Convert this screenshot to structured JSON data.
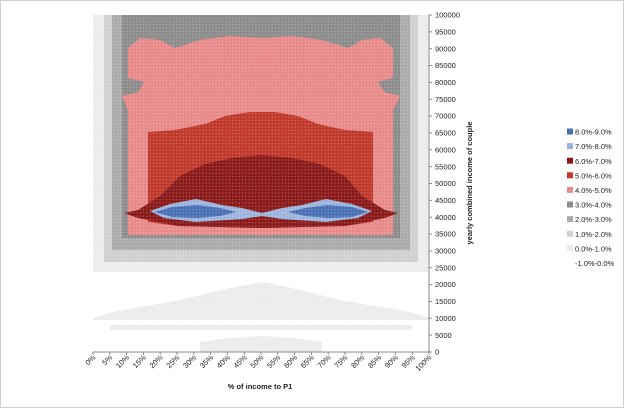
{
  "chart_data": {
    "type": "contour",
    "xlabel": "% of income to P1",
    "ylabel": "yearly combined income of couple",
    "x_ticks": [
      "0%",
      "5%",
      "10%",
      "15%",
      "20%",
      "25%",
      "30%",
      "35%",
      "40%",
      "45%",
      "50%",
      "55%",
      "60%",
      "65%",
      "70%",
      "75%",
      "80%",
      "85%",
      "90%",
      "95%",
      "100%"
    ],
    "y_ticks": [
      "0",
      "5000",
      "10000",
      "15000",
      "20000",
      "25000",
      "30000",
      "35000",
      "40000",
      "45000",
      "50000",
      "55000",
      "60000",
      "65000",
      "70000",
      "75000",
      "80000",
      "85000",
      "90000",
      "95000",
      "100000"
    ],
    "xlim": [
      0,
      100
    ],
    "ylim": [
      0,
      100000
    ],
    "series": [
      {
        "name": "8.0%-9.0%",
        "color": "#4a6fb5"
      },
      {
        "name": "7.0%-8.0%",
        "color": "#9bb5de"
      },
      {
        "name": "6.0%-7.0%",
        "color": "#8b1a1a"
      },
      {
        "name": "5.0%-6.0%",
        "color": "#c0392b"
      },
      {
        "name": "4.0%-5.0%",
        "color": "#e88a8a"
      },
      {
        "name": "3.0%-4.0%",
        "color": "#8c8c8c"
      },
      {
        "name": "2.0%-3.0%",
        "color": "#ababab"
      },
      {
        "name": "1.0%-2.0%",
        "color": "#d0d0d0"
      },
      {
        "name": "0.0%-1.0%",
        "color": "#ececec"
      },
      {
        "name": "-1.0%-0.0%",
        "color": "#ffffff"
      }
    ]
  }
}
